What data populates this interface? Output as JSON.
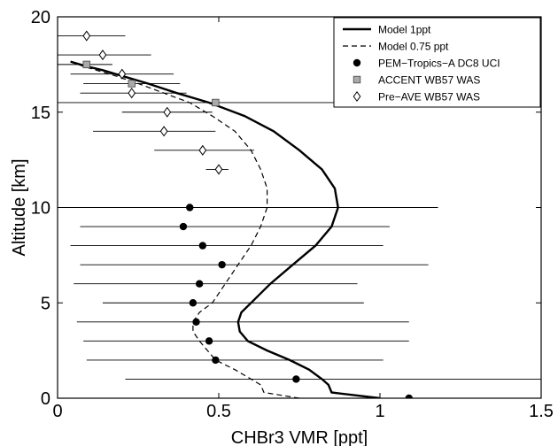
{
  "chart_data": {
    "type": "line",
    "xlabel": "CHBr3 VMR [ppt]",
    "ylabel": "Altitude [km]",
    "xlim": [
      0,
      1.5
    ],
    "ylim": [
      0,
      20
    ],
    "xticks": [
      "0",
      "0.5",
      "1",
      "1.5"
    ],
    "yticks": [
      "0",
      "5",
      "10",
      "15",
      "20"
    ],
    "grid": false,
    "legend_position": "top-right",
    "series": [
      {
        "name": "Model 1ppt",
        "style": "solid-line",
        "color": "#000000",
        "x": [
          1.0,
          0.85,
          0.84,
          0.82,
          0.78,
          0.72,
          0.65,
          0.59,
          0.565,
          0.56,
          0.57,
          0.6,
          0.66,
          0.73,
          0.8,
          0.85,
          0.87,
          0.86,
          0.82,
          0.75,
          0.67,
          0.58,
          0.47,
          0.37,
          0.28,
          0.2,
          0.14,
          0.09,
          0.06,
          0.04
        ],
        "y": [
          0.0,
          0.3,
          0.7,
          1.0,
          1.5,
          2.0,
          2.5,
          3.0,
          3.5,
          4.0,
          4.5,
          5.0,
          6.0,
          7.0,
          8.0,
          9.0,
          10.0,
          11.0,
          12.0,
          13.0,
          14.0,
          14.8,
          15.5,
          16.0,
          16.5,
          16.9,
          17.2,
          17.4,
          17.55,
          17.65
        ]
      },
      {
        "name": "Model 0.75 ppt",
        "style": "dashed-line",
        "color": "#000000",
        "x": [
          0.75,
          0.64,
          0.63,
          0.6,
          0.55,
          0.49,
          0.44,
          0.42,
          0.42,
          0.44,
          0.48,
          0.52,
          0.56,
          0.6,
          0.63,
          0.65,
          0.65,
          0.63,
          0.6,
          0.55,
          0.48,
          0.41,
          0.33,
          0.25,
          0.18,
          0.12,
          0.08,
          0.05
        ],
        "y": [
          0.0,
          0.3,
          0.7,
          1.0,
          1.5,
          2.0,
          3.0,
          3.5,
          4.0,
          4.5,
          5.0,
          6.0,
          7.0,
          8.0,
          9.0,
          10.0,
          11.0,
          12.0,
          13.0,
          14.0,
          14.8,
          15.5,
          16.0,
          16.5,
          16.9,
          17.2,
          17.4,
          17.6
        ]
      },
      {
        "name": "PEM−Tropics−A DC8 UCI",
        "style": "filled-circle",
        "color": "#000000",
        "points": [
          {
            "x": 1.09,
            "y": 0.0,
            "xlo": 0.0,
            "xhi": 1.5
          },
          {
            "x": 0.74,
            "y": 1.0,
            "xlo": 0.21,
            "xhi": 1.5
          },
          {
            "x": 0.49,
            "y": 2.0,
            "xlo": 0.09,
            "xhi": 1.01
          },
          {
            "x": 0.47,
            "y": 3.0,
            "xlo": 0.08,
            "xhi": 1.09
          },
          {
            "x": 0.43,
            "y": 4.0,
            "xlo": 0.06,
            "xhi": 1.09
          },
          {
            "x": 0.42,
            "y": 5.0,
            "xlo": 0.14,
            "xhi": 0.95
          },
          {
            "x": 0.44,
            "y": 6.0,
            "xlo": 0.05,
            "xhi": 0.93
          },
          {
            "x": 0.51,
            "y": 7.0,
            "xlo": 0.07,
            "xhi": 1.15
          },
          {
            "x": 0.45,
            "y": 8.0,
            "xlo": 0.04,
            "xhi": 1.01
          },
          {
            "x": 0.39,
            "y": 9.0,
            "xlo": 0.07,
            "xhi": 1.03
          },
          {
            "x": 0.41,
            "y": 10.0,
            "xlo": 0.0,
            "xhi": 1.18
          }
        ]
      },
      {
        "name": "ACCENT WB57 WAS",
        "style": "gray-square",
        "color": "#aaaaaa",
        "points": [
          {
            "x": 0.09,
            "y": 17.5,
            "xlo": 0.0,
            "xhi": 0.17
          },
          {
            "x": 0.23,
            "y": 16.5,
            "xlo": 0.08,
            "xhi": 0.38
          },
          {
            "x": 0.49,
            "y": 15.5,
            "xlo": 0.0,
            "xhi": 1.22
          }
        ]
      },
      {
        "name": "Pre−AVE WB57 WAS",
        "style": "open-diamond",
        "color": "#000000",
        "points": [
          {
            "x": 0.09,
            "y": 19.0,
            "xlo": 0.0,
            "xhi": 0.21
          },
          {
            "x": 0.14,
            "y": 18.0,
            "xlo": 0.0,
            "xhi": 0.29
          },
          {
            "x": 0.2,
            "y": 17.0,
            "xlo": 0.04,
            "xhi": 0.36
          },
          {
            "x": 0.23,
            "y": 16.0,
            "xlo": 0.07,
            "xhi": 0.4
          },
          {
            "x": 0.34,
            "y": 15.0,
            "xlo": 0.2,
            "xhi": 0.48
          },
          {
            "x": 0.33,
            "y": 14.0,
            "xlo": 0.11,
            "xhi": 0.49
          },
          {
            "x": 0.45,
            "y": 13.0,
            "xlo": 0.3,
            "xhi": 0.61
          },
          {
            "x": 0.5,
            "y": 12.0,
            "xlo": 0.46,
            "xhi": 0.53
          }
        ]
      }
    ]
  }
}
